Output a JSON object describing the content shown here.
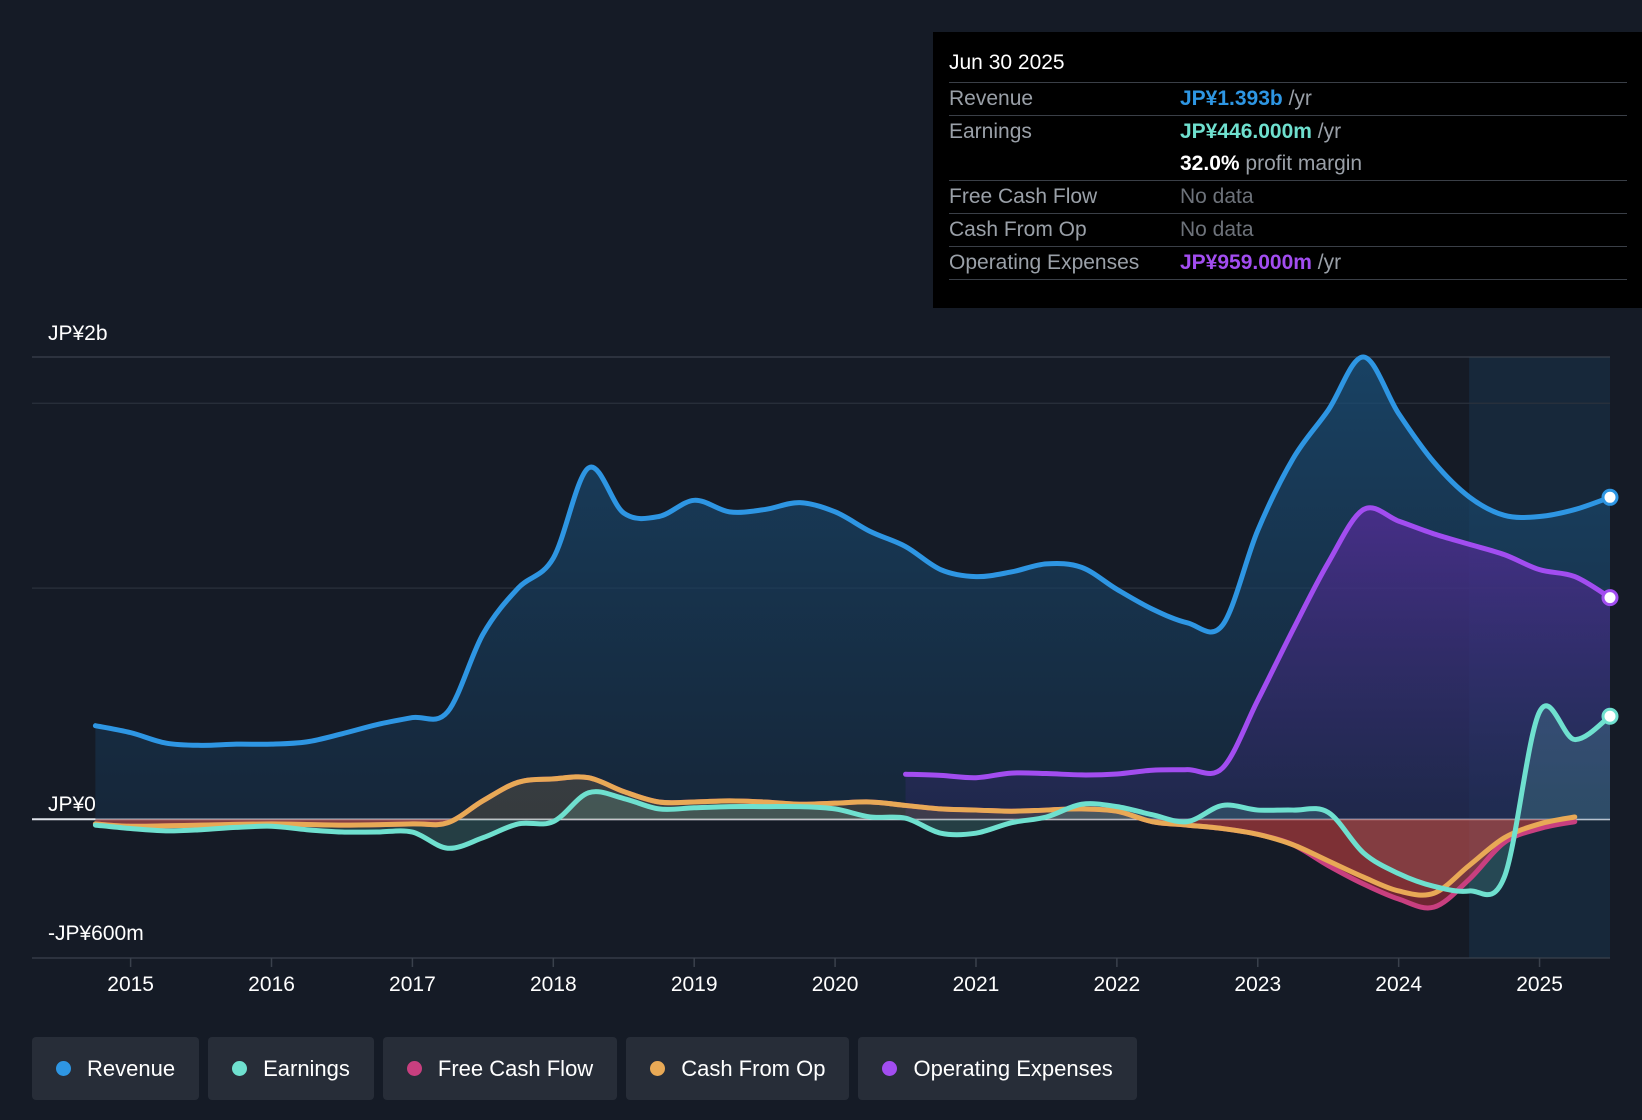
{
  "tooltip": {
    "date": "Jun 30 2025",
    "rows": {
      "revenue": {
        "label": "Revenue",
        "value": "JP¥1.393b",
        "unit": "/yr",
        "color": "#2e96e3"
      },
      "earnings": {
        "label": "Earnings",
        "value": "JP¥446.000m",
        "unit": "/yr",
        "color": "#6fe0cf"
      },
      "margin": {
        "value": "32.0%",
        "text": "profit margin"
      },
      "fcf": {
        "label": "Free Cash Flow",
        "value": "No data"
      },
      "cfo": {
        "label": "Cash From Op",
        "value": "No data"
      },
      "opex": {
        "label": "Operating Expenses",
        "value": "JP¥959.000m",
        "unit": "/yr",
        "color": "#a24df0"
      }
    }
  },
  "legend": [
    {
      "label": "Revenue",
      "color": "#2e96e3"
    },
    {
      "label": "Earnings",
      "color": "#6fe0cf"
    },
    {
      "label": "Free Cash Flow",
      "color": "#c83f7f"
    },
    {
      "label": "Cash From Op",
      "color": "#e8a956"
    },
    {
      "label": "Operating Expenses",
      "color": "#a24df0"
    }
  ],
  "chart_data": {
    "type": "area",
    "y_top_label": "JP¥2b",
    "y_zero_label": "JP¥0",
    "y_bottom_label": "-JP¥600m",
    "ylim": [
      -600,
      2000
    ],
    "xlim": [
      2014.3,
      2025.5
    ],
    "forecast_start": 2024.5,
    "x_ticks": [
      {
        "value": 2015,
        "label": "2015"
      },
      {
        "value": 2016,
        "label": "2016"
      },
      {
        "value": 2017,
        "label": "2017"
      },
      {
        "value": 2018,
        "label": "2018"
      },
      {
        "value": 2019,
        "label": "2019"
      },
      {
        "value": 2020,
        "label": "2020"
      },
      {
        "value": 2021,
        "label": "2021"
      },
      {
        "value": 2022,
        "label": "2022"
      },
      {
        "value": 2023,
        "label": "2023"
      },
      {
        "value": 2024,
        "label": "2024"
      },
      {
        "value": 2025,
        "label": "2025"
      }
    ],
    "series": [
      {
        "name": "Revenue",
        "key": "revenue",
        "color": "#2e96e3",
        "end_marker": true,
        "x": [
          2014.75,
          2015.0,
          2015.25,
          2015.5,
          2015.75,
          2016.0,
          2016.25,
          2016.5,
          2016.75,
          2017.0,
          2017.25,
          2017.5,
          2017.75,
          2018.0,
          2018.25,
          2018.5,
          2018.75,
          2019.0,
          2019.25,
          2019.5,
          2019.75,
          2020.0,
          2020.25,
          2020.5,
          2020.75,
          2021.0,
          2021.25,
          2021.5,
          2021.75,
          2022.0,
          2022.25,
          2022.5,
          2022.75,
          2023.0,
          2023.25,
          2023.5,
          2023.75,
          2024.0,
          2024.25,
          2024.5,
          2024.75,
          2025.0,
          2025.25,
          2025.5
        ],
        "y": [
          405,
          375,
          330,
          320,
          325,
          325,
          335,
          370,
          410,
          440,
          465,
          800,
          1000,
          1130,
          1520,
          1325,
          1310,
          1380,
          1330,
          1340,
          1370,
          1330,
          1245,
          1180,
          1080,
          1050,
          1070,
          1105,
          1090,
          995,
          910,
          850,
          840,
          1250,
          1560,
          1770,
          2000,
          1755,
          1545,
          1395,
          1315,
          1310,
          1340,
          1393
        ]
      },
      {
        "name": "Operating Expenses",
        "key": "opex",
        "color": "#a24df0",
        "end_marker": true,
        "x": [
          2020.5,
          2020.75,
          2021.0,
          2021.25,
          2021.5,
          2021.75,
          2022.0,
          2022.25,
          2022.5,
          2022.75,
          2023.0,
          2023.25,
          2023.5,
          2023.75,
          2024.0,
          2024.25,
          2024.5,
          2024.75,
          2025.0,
          2025.25,
          2025.5
        ],
        "y": [
          195,
          190,
          180,
          200,
          198,
          192,
          196,
          212,
          215,
          222,
          515,
          820,
          1110,
          1340,
          1290,
          1235,
          1190,
          1145,
          1080,
          1050,
          959
        ]
      },
      {
        "name": "Earnings",
        "key": "earnings",
        "color": "#6fe0cf",
        "end_marker": true,
        "x": [
          2014.75,
          2015.0,
          2015.25,
          2015.5,
          2015.75,
          2016.0,
          2016.25,
          2016.5,
          2016.75,
          2017.0,
          2017.25,
          2017.5,
          2017.75,
          2018.0,
          2018.25,
          2018.5,
          2018.75,
          2019.0,
          2019.25,
          2019.5,
          2019.75,
          2020.0,
          2020.25,
          2020.5,
          2020.75,
          2021.0,
          2021.25,
          2021.5,
          2021.75,
          2022.0,
          2022.25,
          2022.5,
          2022.75,
          2023.0,
          2023.25,
          2023.5,
          2023.75,
          2024.0,
          2024.25,
          2024.5,
          2024.75,
          2025.0,
          2025.25,
          2025.5
        ],
        "y": [
          -25,
          -40,
          -50,
          -45,
          -35,
          -30,
          -45,
          -55,
          -55,
          -55,
          -125,
          -80,
          -20,
          -10,
          115,
          90,
          45,
          50,
          55,
          55,
          55,
          45,
          10,
          5,
          -60,
          -60,
          -15,
          10,
          65,
          55,
          20,
          -10,
          60,
          40,
          40,
          30,
          -145,
          -235,
          -290,
          -310,
          -250,
          465,
          345,
          446
        ]
      },
      {
        "name": "Free Cash Flow",
        "key": "fcf",
        "color": "#c83f7f",
        "end_marker": false,
        "fill_negative": true,
        "x": [
          2014.75,
          2015.0,
          2015.5,
          2016.0,
          2016.5,
          2017.0,
          2017.25,
          2017.5,
          2017.75,
          2018.0,
          2018.25,
          2018.5,
          2018.75,
          2019.0,
          2019.25,
          2019.5,
          2019.75,
          2020.0,
          2020.25,
          2020.5,
          2020.75,
          2021.0,
          2021.25,
          2021.5,
          2021.75,
          2022.0,
          2022.25,
          2022.5,
          2022.75,
          2023.0,
          2023.25,
          2023.5,
          2023.75,
          2024.0,
          2024.25,
          2024.5,
          2024.75,
          2025.0,
          2025.25
        ],
        "y": [
          -20,
          -30,
          -25,
          -20,
          -25,
          -20,
          -15,
          80,
          160,
          175,
          180,
          120,
          75,
          75,
          80,
          75,
          65,
          70,
          75,
          60,
          45,
          40,
          35,
          40,
          45,
          35,
          -10,
          -25,
          -40,
          -65,
          -110,
          -200,
          -280,
          -345,
          -380,
          -260,
          -100,
          -40,
          -10
        ]
      },
      {
        "name": "Cash From Op",
        "key": "cfo",
        "color": "#e8a956",
        "end_marker": false,
        "x": [
          2014.75,
          2015.0,
          2015.5,
          2016.0,
          2016.5,
          2017.0,
          2017.25,
          2017.5,
          2017.75,
          2018.0,
          2018.25,
          2018.5,
          2018.75,
          2019.0,
          2019.25,
          2019.5,
          2019.75,
          2020.0,
          2020.25,
          2020.5,
          2020.75,
          2021.0,
          2021.25,
          2021.5,
          2021.75,
          2022.0,
          2022.25,
          2022.5,
          2022.75,
          2023.0,
          2023.25,
          2023.5,
          2023.75,
          2024.0,
          2024.25,
          2024.5,
          2024.75,
          2025.0,
          2025.25
        ],
        "y": [
          -20,
          -30,
          -25,
          -20,
          -25,
          -20,
          -15,
          80,
          160,
          175,
          180,
          120,
          75,
          75,
          80,
          75,
          65,
          70,
          75,
          60,
          45,
          40,
          35,
          40,
          45,
          35,
          -10,
          -25,
          -40,
          -65,
          -110,
          -180,
          -250,
          -310,
          -320,
          -200,
          -80,
          -20,
          10
        ]
      }
    ]
  }
}
